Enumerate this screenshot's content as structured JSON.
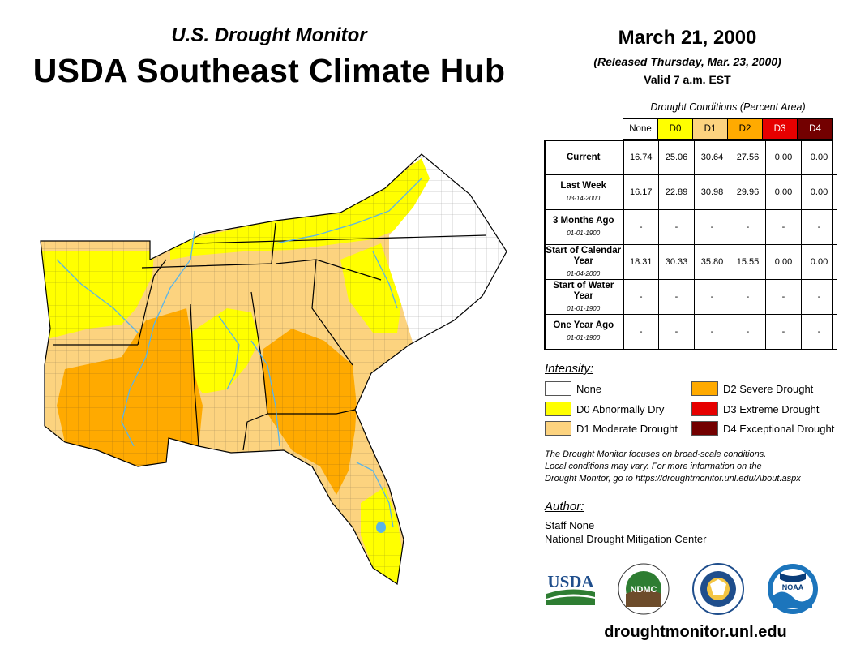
{
  "header": {
    "subtitle": "U.S. Drought Monitor",
    "title": "USDA Southeast Climate Hub"
  },
  "report": {
    "date": "March 21, 2000",
    "released": "(Released Thursday, Mar. 23, 2000)",
    "valid": "Valid 7 a.m. EST"
  },
  "table": {
    "caption": "Drought Conditions (Percent Area)",
    "columns": [
      "None",
      "D0",
      "D1",
      "D2",
      "D3",
      "D4"
    ],
    "rows": [
      {
        "label": "Current",
        "date": "",
        "values": [
          "16.74",
          "25.06",
          "30.64",
          "27.56",
          "0.00",
          "0.00"
        ]
      },
      {
        "label": "Last Week",
        "date": "03-14-2000",
        "values": [
          "16.17",
          "22.89",
          "30.98",
          "29.96",
          "0.00",
          "0.00"
        ]
      },
      {
        "label": "3 Months Ago",
        "date": "01-01-1900",
        "values": [
          "-",
          "-",
          "-",
          "-",
          "-",
          "-"
        ]
      },
      {
        "label": "Start of Calendar Year",
        "date": "01-04-2000",
        "values": [
          "18.31",
          "30.33",
          "35.80",
          "15.55",
          "0.00",
          "0.00"
        ]
      },
      {
        "label": "Start of Water Year",
        "date": "01-01-1900",
        "values": [
          "-",
          "-",
          "-",
          "-",
          "-",
          "-"
        ]
      },
      {
        "label": "One Year Ago",
        "date": "01-01-1900",
        "values": [
          "-",
          "-",
          "-",
          "-",
          "-",
          "-"
        ]
      }
    ]
  },
  "legend": {
    "title": "Intensity:",
    "items": [
      {
        "label": "None",
        "color": "#ffffff"
      },
      {
        "label": "D0 Abnormally Dry",
        "color": "#ffff00"
      },
      {
        "label": "D1 Moderate Drought",
        "color": "#fcd37f"
      },
      {
        "label": "D2 Severe Drought",
        "color": "#ffaa00"
      },
      {
        "label": "D3 Extreme Drought",
        "color": "#e60000"
      },
      {
        "label": "D4 Exceptional Drought",
        "color": "#730000"
      }
    ]
  },
  "note": {
    "line1": "The Drought Monitor focuses on broad-scale conditions.",
    "line2": "Local conditions may vary. For more information on the",
    "line3": "Drought Monitor, go to https://droughtmonitor.unl.edu/About.aspx"
  },
  "author": {
    "label": "Author:",
    "name": "Staff None",
    "org": "National Drought Mitigation Center"
  },
  "logos": {
    "usda": "USDA",
    "ndmc": "NDMC",
    "noaa": "NOAA"
  },
  "footer": {
    "url": "droughtmonitor.unl.edu"
  },
  "colors": {
    "water": "#5ab4e8",
    "border": "#000000"
  }
}
